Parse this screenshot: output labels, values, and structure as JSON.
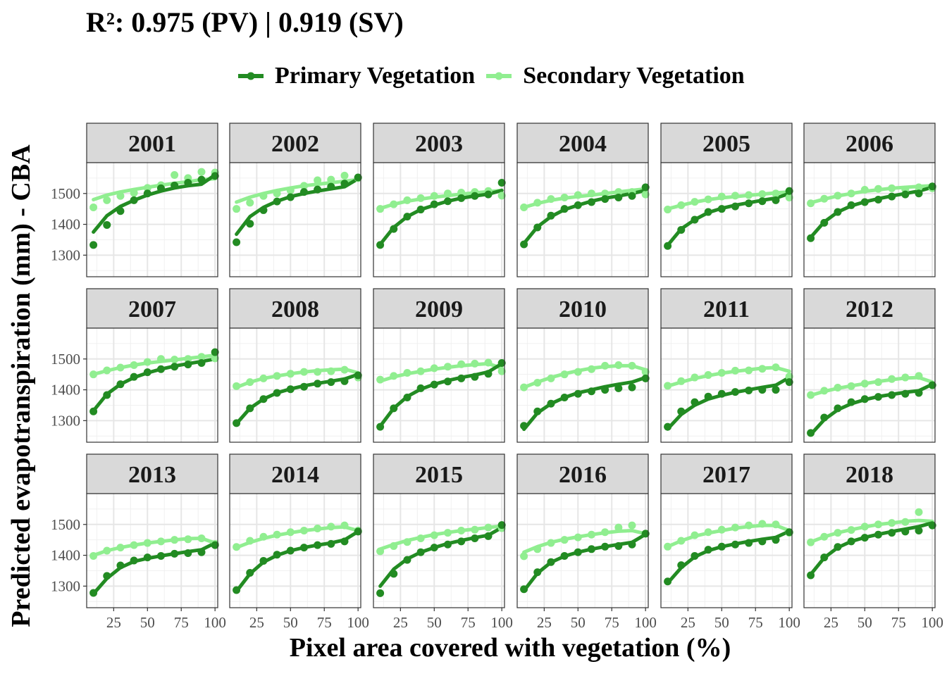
{
  "chart_data": {
    "type": "line",
    "title": "R²: 0.975 (PV) | 0.919 (SV)",
    "xlabel": "Pixel area covered with vegetation (%)",
    "ylabel": "Predicted evapotranspiration (mm) - CBA",
    "xlim": [
      5,
      102
    ],
    "ylim": [
      1230,
      1600
    ],
    "x_ticks": [
      25,
      50,
      75,
      100
    ],
    "y_ticks": [
      1300,
      1400,
      1500
    ],
    "grid": true,
    "legend_position": "top",
    "x": [
      10,
      20,
      30,
      40,
      50,
      60,
      70,
      80,
      90,
      100
    ],
    "colors": {
      "Primary Vegetation": "#228B22",
      "Secondary Vegetation": "#90EE90"
    },
    "series_names": [
      "Primary Vegetation",
      "Secondary Vegetation"
    ],
    "facets": [
      {
        "panel": "2001",
        "pv": [
          1333,
          1398,
          1443,
          1478,
          1500,
          1517,
          1526,
          1535,
          1545,
          1557
        ],
        "sv": [
          1455,
          1478,
          1492,
          1502,
          1518,
          1527,
          1560,
          1550,
          1570,
          1568
        ],
        "pv_fit": [
          1375,
          1428,
          1458,
          1478,
          1495,
          1508,
          1518,
          1525,
          1530,
          1560
        ],
        "sv_fit": [
          1480,
          1495,
          1505,
          1513,
          1520,
          1527,
          1533,
          1538,
          1545,
          1548
        ]
      },
      {
        "panel": "2002",
        "pv": [
          1342,
          1402,
          1446,
          1474,
          1488,
          1505,
          1513,
          1522,
          1532,
          1552
        ],
        "sv": [
          1450,
          1470,
          1492,
          1500,
          1510,
          1525,
          1543,
          1545,
          1558,
          1550
        ],
        "pv_fit": [
          1368,
          1425,
          1455,
          1475,
          1490,
          1500,
          1508,
          1515,
          1522,
          1548
        ],
        "sv_fit": [
          1472,
          1488,
          1500,
          1510,
          1518,
          1525,
          1530,
          1535,
          1540,
          1545
        ]
      },
      {
        "panel": "2003",
        "pv": [
          1333,
          1385,
          1425,
          1448,
          1465,
          1475,
          1485,
          1492,
          1497,
          1535
        ],
        "sv": [
          1450,
          1465,
          1478,
          1485,
          1492,
          1500,
          1503,
          1505,
          1508,
          1493
        ],
        "pv_fit": [
          1335,
          1390,
          1425,
          1448,
          1462,
          1475,
          1485,
          1492,
          1498,
          1510
        ],
        "sv_fit": [
          1452,
          1465,
          1475,
          1482,
          1488,
          1493,
          1498,
          1502,
          1506,
          1510
        ]
      },
      {
        "panel": "2004",
        "pv": [
          1335,
          1390,
          1428,
          1450,
          1462,
          1472,
          1482,
          1487,
          1492,
          1520
        ],
        "sv": [
          1455,
          1470,
          1482,
          1487,
          1495,
          1500,
          1500,
          1505,
          1505,
          1497
        ],
        "pv_fit": [
          1338,
          1392,
          1425,
          1448,
          1462,
          1475,
          1485,
          1492,
          1500,
          1510
        ],
        "sv_fit": [
          1455,
          1468,
          1478,
          1485,
          1490,
          1495,
          1500,
          1505,
          1510,
          1515
        ]
      },
      {
        "panel": "2005",
        "pv": [
          1330,
          1382,
          1415,
          1440,
          1450,
          1458,
          1468,
          1475,
          1478,
          1508
        ],
        "sv": [
          1448,
          1462,
          1473,
          1481,
          1490,
          1493,
          1495,
          1498,
          1500,
          1487
        ],
        "pv_fit": [
          1332,
          1385,
          1415,
          1438,
          1452,
          1462,
          1470,
          1478,
          1485,
          1500
        ],
        "sv_fit": [
          1450,
          1462,
          1472,
          1480,
          1486,
          1490,
          1494,
          1498,
          1502,
          1505
        ]
      },
      {
        "panel": "2006",
        "pv": [
          1355,
          1405,
          1440,
          1462,
          1472,
          1480,
          1490,
          1497,
          1500,
          1523
        ],
        "sv": [
          1468,
          1483,
          1493,
          1500,
          1512,
          1515,
          1517,
          1513,
          1520,
          1517
        ],
        "pv_fit": [
          1358,
          1408,
          1440,
          1460,
          1473,
          1483,
          1492,
          1500,
          1508,
          1520
        ],
        "sv_fit": [
          1470,
          1482,
          1492,
          1500,
          1507,
          1512,
          1517,
          1520,
          1523,
          1525
        ]
      },
      {
        "panel": "2007",
        "pv": [
          1330,
          1383,
          1418,
          1442,
          1457,
          1467,
          1475,
          1482,
          1487,
          1522
        ],
        "sv": [
          1450,
          1463,
          1472,
          1480,
          1490,
          1500,
          1498,
          1500,
          1507,
          1502
        ],
        "pv_fit": [
          1332,
          1386,
          1418,
          1440,
          1455,
          1467,
          1477,
          1485,
          1492,
          1500
        ],
        "sv_fit": [
          1450,
          1462,
          1472,
          1480,
          1487,
          1492,
          1497,
          1502,
          1507,
          1512
        ]
      },
      {
        "panel": "2008",
        "pv": [
          1292,
          1340,
          1370,
          1390,
          1402,
          1410,
          1420,
          1425,
          1428,
          1447
        ],
        "sv": [
          1412,
          1425,
          1437,
          1445,
          1452,
          1458,
          1458,
          1460,
          1465,
          1440
        ],
        "pv_fit": [
          1290,
          1340,
          1370,
          1390,
          1403,
          1413,
          1421,
          1428,
          1435,
          1450
        ],
        "sv_fit": [
          1408,
          1425,
          1437,
          1445,
          1452,
          1458,
          1462,
          1465,
          1467,
          1455
        ]
      },
      {
        "panel": "2009",
        "pv": [
          1280,
          1340,
          1375,
          1405,
          1417,
          1427,
          1437,
          1442,
          1452,
          1487
        ],
        "sv": [
          1433,
          1445,
          1455,
          1460,
          1470,
          1475,
          1483,
          1485,
          1488,
          1460
        ],
        "pv_fit": [
          1282,
          1340,
          1378,
          1402,
          1418,
          1430,
          1440,
          1448,
          1458,
          1485
        ],
        "sv_fit": [
          1428,
          1442,
          1452,
          1460,
          1467,
          1473,
          1478,
          1482,
          1485,
          1470
        ]
      },
      {
        "panel": "2010",
        "pv": [
          1283,
          1330,
          1355,
          1375,
          1387,
          1395,
          1400,
          1405,
          1408,
          1437
        ],
        "sv": [
          1408,
          1423,
          1437,
          1450,
          1458,
          1467,
          1478,
          1480,
          1478,
          1458
        ],
        "pv_fit": [
          1272,
          1325,
          1355,
          1375,
          1390,
          1400,
          1410,
          1418,
          1425,
          1440
        ],
        "sv_fit": [
          1408,
          1425,
          1440,
          1452,
          1462,
          1470,
          1475,
          1478,
          1478,
          1465
        ]
      },
      {
        "panel": "2011",
        "pv": [
          1280,
          1330,
          1360,
          1378,
          1387,
          1393,
          1398,
          1400,
          1400,
          1425
        ],
        "sv": [
          1413,
          1428,
          1440,
          1448,
          1455,
          1462,
          1463,
          1468,
          1473,
          1443
        ],
        "pv_fit": [
          1273,
          1320,
          1350,
          1370,
          1382,
          1392,
          1400,
          1408,
          1415,
          1440
        ],
        "sv_fit": [
          1412,
          1425,
          1437,
          1446,
          1454,
          1460,
          1465,
          1470,
          1472,
          1460
        ]
      },
      {
        "panel": "2012",
        "pv": [
          1260,
          1310,
          1340,
          1360,
          1370,
          1377,
          1383,
          1387,
          1390,
          1415
        ],
        "sv": [
          1383,
          1397,
          1407,
          1412,
          1420,
          1425,
          1435,
          1440,
          1445,
          1415
        ],
        "pv_fit": [
          1255,
          1303,
          1335,
          1355,
          1368,
          1378,
          1385,
          1392,
          1397,
          1418
        ],
        "sv_fit": [
          1382,
          1395,
          1405,
          1413,
          1420,
          1427,
          1433,
          1438,
          1440,
          1425
        ]
      },
      {
        "panel": "2013",
        "pv": [
          1278,
          1333,
          1367,
          1383,
          1393,
          1398,
          1405,
          1407,
          1410,
          1433
        ],
        "sv": [
          1398,
          1415,
          1425,
          1433,
          1440,
          1445,
          1450,
          1452,
          1455,
          1437
        ],
        "pv_fit": [
          1275,
          1325,
          1360,
          1380,
          1390,
          1398,
          1405,
          1412,
          1418,
          1440
        ],
        "sv_fit": [
          1400,
          1415,
          1425,
          1433,
          1440,
          1445,
          1450,
          1454,
          1455,
          1440
        ]
      },
      {
        "panel": "2014",
        "pv": [
          1287,
          1343,
          1382,
          1402,
          1415,
          1425,
          1433,
          1437,
          1445,
          1477
        ],
        "sv": [
          1427,
          1447,
          1460,
          1467,
          1475,
          1480,
          1487,
          1493,
          1497,
          1480
        ],
        "pv_fit": [
          1283,
          1340,
          1378,
          1400,
          1415,
          1425,
          1433,
          1440,
          1450,
          1477
        ],
        "sv_fit": [
          1425,
          1442,
          1455,
          1465,
          1473,
          1480,
          1485,
          1490,
          1492,
          1480
        ]
      },
      {
        "panel": "2015",
        "pv": [
          1277,
          1340,
          1385,
          1410,
          1425,
          1435,
          1445,
          1455,
          1462,
          1498
        ],
        "sv": [
          1413,
          1430,
          1443,
          1455,
          1465,
          1473,
          1480,
          1483,
          1490,
          1488
        ],
        "pv_fit": [
          1300,
          1355,
          1388,
          1410,
          1425,
          1438,
          1448,
          1457,
          1465,
          1490
        ],
        "sv_fit": [
          1420,
          1435,
          1448,
          1458,
          1467,
          1474,
          1480,
          1485,
          1490,
          1495
        ]
      },
      {
        "panel": "2016",
        "pv": [
          1290,
          1345,
          1378,
          1398,
          1410,
          1420,
          1428,
          1430,
          1435,
          1470
        ],
        "sv": [
          1397,
          1420,
          1440,
          1450,
          1458,
          1467,
          1475,
          1490,
          1497,
          1470
        ],
        "pv_fit": [
          1285,
          1342,
          1377,
          1397,
          1410,
          1420,
          1428,
          1435,
          1442,
          1468
        ],
        "sv_fit": [
          1410,
          1428,
          1442,
          1452,
          1460,
          1467,
          1473,
          1478,
          1480,
          1470
        ]
      },
      {
        "panel": "2017",
        "pv": [
          1315,
          1368,
          1398,
          1418,
          1428,
          1435,
          1440,
          1445,
          1450,
          1475
        ],
        "sv": [
          1428,
          1447,
          1465,
          1475,
          1483,
          1490,
          1497,
          1502,
          1500,
          1473
        ],
        "pv_fit": [
          1310,
          1360,
          1395,
          1415,
          1428,
          1437,
          1445,
          1452,
          1458,
          1478
        ],
        "sv_fit": [
          1428,
          1447,
          1462,
          1472,
          1480,
          1488,
          1493,
          1497,
          1497,
          1480
        ]
      },
      {
        "panel": "2018",
        "pv": [
          1335,
          1393,
          1427,
          1445,
          1457,
          1467,
          1473,
          1477,
          1480,
          1497
        ],
        "sv": [
          1442,
          1460,
          1473,
          1482,
          1493,
          1500,
          1505,
          1508,
          1540,
          1497
        ],
        "pv_fit": [
          1338,
          1392,
          1425,
          1445,
          1458,
          1468,
          1477,
          1485,
          1493,
          1505
        ],
        "sv_fit": [
          1443,
          1460,
          1473,
          1483,
          1492,
          1500,
          1505,
          1510,
          1513,
          1510
        ]
      }
    ]
  }
}
